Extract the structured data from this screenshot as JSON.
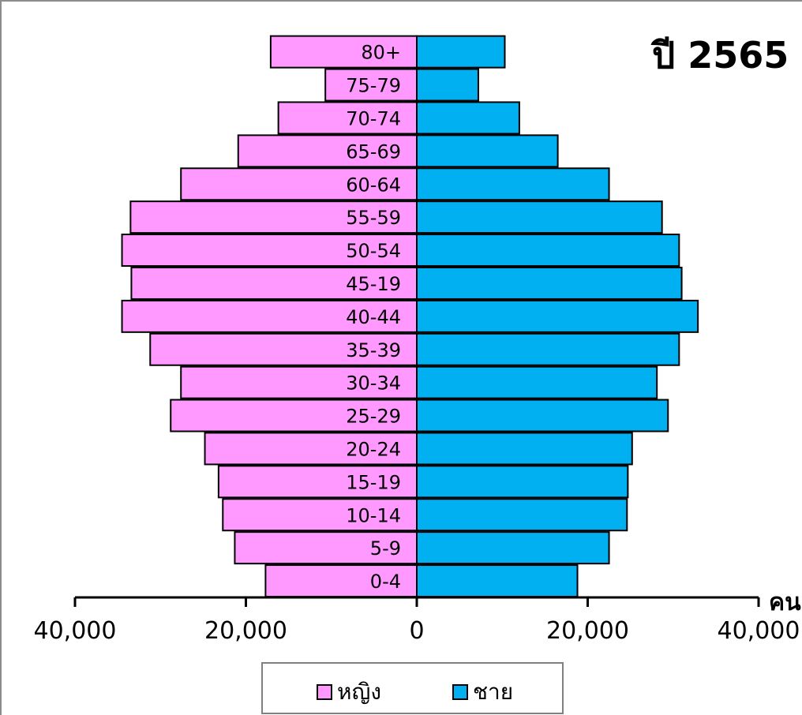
{
  "chart_data": {
    "type": "bar",
    "title": "ปี 2565",
    "xlabel": "คน",
    "categories": [
      "0-4",
      "5-9",
      "10-14",
      "15-19",
      "20-24",
      "25-29",
      "30-34",
      "35-39",
      "40-44",
      "45-19",
      "50-54",
      "55-59",
      "60-64",
      "65-69",
      "70-74",
      "75-79",
      "80+"
    ],
    "series": [
      {
        "name": "หญิง",
        "color": "#ff99ff",
        "values": [
          17700,
          21300,
          22700,
          23200,
          24800,
          28800,
          27600,
          31200,
          34500,
          33400,
          34500,
          33500,
          27600,
          20900,
          16200,
          10700,
          17100
        ]
      },
      {
        "name": "ชาย",
        "color": "#00b0f0",
        "values": [
          18800,
          22500,
          24600,
          24700,
          25200,
          29400,
          28100,
          30700,
          32900,
          31000,
          30700,
          28700,
          22500,
          16500,
          12000,
          7200,
          10300
        ]
      }
    ],
    "xlim": [
      -40000,
      40000
    ],
    "xticks": [
      "40,000",
      "20,000",
      "0",
      "20,000",
      "40,000"
    ],
    "grid": false,
    "legend": "bottom"
  }
}
